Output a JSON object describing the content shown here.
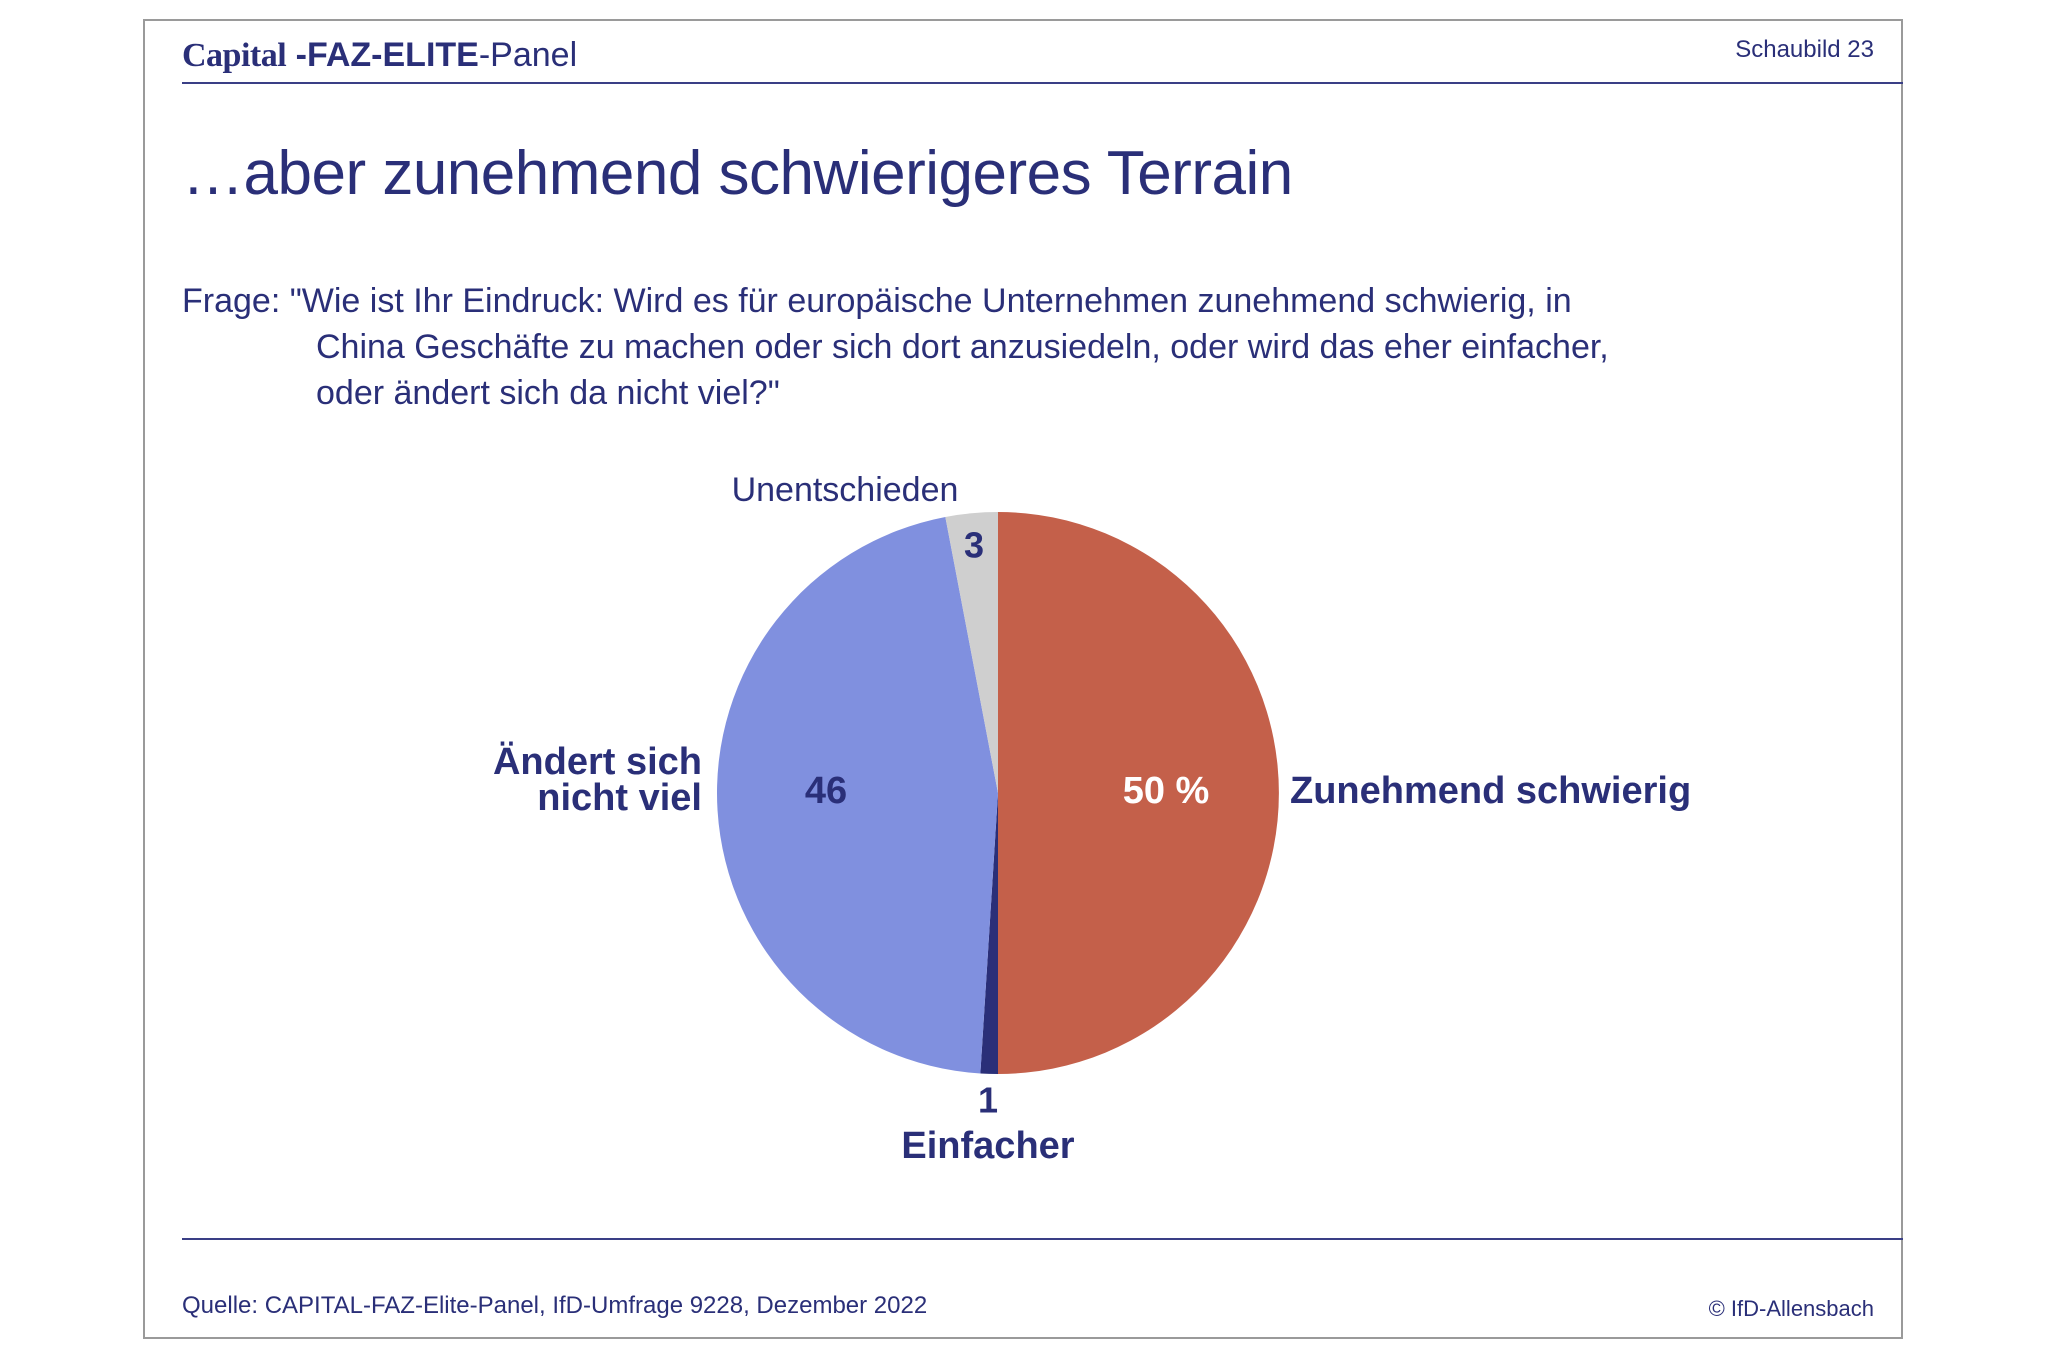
{
  "header": {
    "brand_capital": "Capital",
    "brand_faz": " -FAZ-ELITE",
    "brand_panel": "-Panel",
    "sheet_number": "Schaubild 23"
  },
  "title": "…aber zunehmend schwierigeres Terrain",
  "question": {
    "line1": "Frage: \"Wie ist Ihr Eindruck: Wird es für europäische Unternehmen zunehmend schwierig, in",
    "line2": "China Geschäfte zu machen oder sich dort anzusiedeln, oder wird das eher einfacher,",
    "line3": "oder ändert sich da nicht viel?\""
  },
  "chart_data": {
    "type": "pie",
    "unit": "%",
    "slices": [
      {
        "label": "Zunehmend schwierig",
        "value": 50,
        "value_label": "50 %",
        "color": "#c4604a",
        "value_color": "#ffffff"
      },
      {
        "label": "Einfacher",
        "value": 1,
        "value_label": "1",
        "color": "#2a2f78",
        "value_color": "#2a2f78"
      },
      {
        "label": "Ändert sich nicht viel",
        "value": 46,
        "value_label": "46",
        "color": "#8090df",
        "value_color": "#2a2f78"
      },
      {
        "label": "Unentschieden",
        "value": 3,
        "value_label": "3",
        "color": "#cfcfcf",
        "value_color": "#2a2f78"
      }
    ]
  },
  "footer": {
    "source": "Quelle: CAPITAL-FAZ-Elite-Panel, IfD-Umfrage 9228, Dezember 2022",
    "copyright": "© IfD-Allensbach"
  }
}
